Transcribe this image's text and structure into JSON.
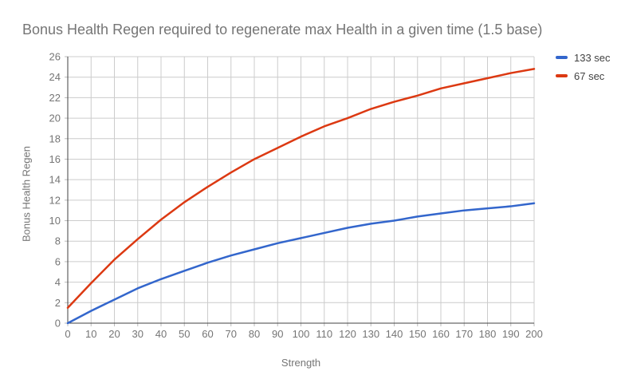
{
  "chart_data": {
    "type": "line",
    "title": "Bonus Health Regen required to regenerate max Health in a given time (1.5 base)",
    "xlabel": "Strength",
    "ylabel": "Bonus Health Regen",
    "x": [
      0,
      10,
      20,
      30,
      40,
      50,
      60,
      70,
      80,
      90,
      100,
      110,
      120,
      130,
      140,
      150,
      160,
      170,
      180,
      190,
      200
    ],
    "series": [
      {
        "name": "133 sec",
        "color": "#3366CC",
        "values": [
          0,
          1.2,
          2.3,
          3.4,
          4.3,
          5.1,
          5.9,
          6.6,
          7.2,
          7.8,
          8.3,
          8.8,
          9.3,
          9.7,
          10.0,
          10.4,
          10.7,
          11.0,
          11.2,
          11.4,
          11.7
        ]
      },
      {
        "name": "67 sec",
        "color": "#DC3912",
        "values": [
          1.5,
          3.9,
          6.2,
          8.2,
          10.1,
          11.8,
          13.3,
          14.7,
          16.0,
          17.1,
          18.2,
          19.2,
          20.0,
          20.9,
          21.6,
          22.2,
          22.9,
          23.4,
          23.9,
          24.4,
          24.8
        ]
      }
    ],
    "xlim": [
      0,
      200
    ],
    "ylim": [
      0,
      26
    ],
    "x_ticks": [
      0,
      10,
      20,
      30,
      40,
      50,
      60,
      70,
      80,
      90,
      100,
      110,
      120,
      130,
      140,
      150,
      160,
      170,
      180,
      190,
      200
    ],
    "y_ticks": [
      0,
      2,
      4,
      6,
      8,
      10,
      12,
      14,
      16,
      18,
      20,
      22,
      24,
      26
    ],
    "grid": true,
    "legend_position": "right",
    "grid_color": "#cccccc",
    "axis_color": "#424242",
    "tick_color": "#bdbdbd",
    "tick_label_color": "#757575",
    "tick_label_size": 13,
    "line_width": 2.5
  }
}
